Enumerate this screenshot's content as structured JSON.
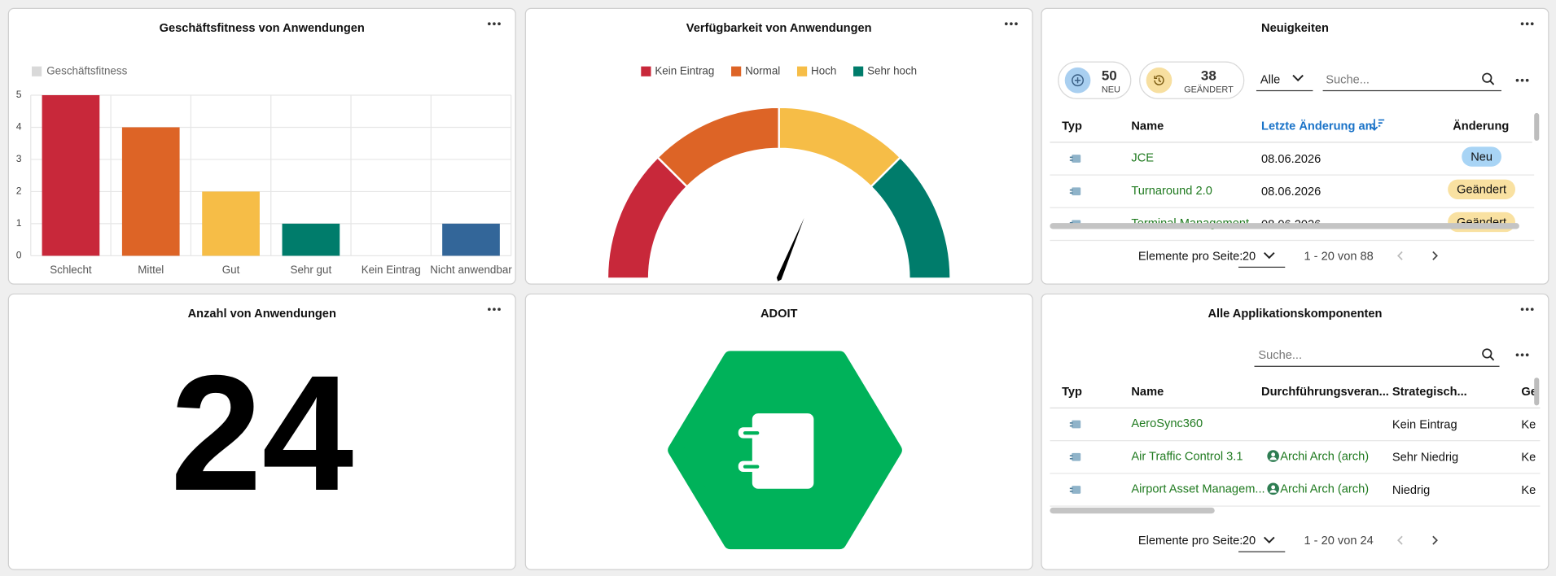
{
  "fitness": {
    "title": "Geschäftsfitness von Anwendungen",
    "chart_data": {
      "type": "bar",
      "legend": "Geschäftsfitness",
      "legend_color": "#d9d9d9",
      "categories": [
        "Schlecht",
        "Mittel",
        "Gut",
        "Sehr gut",
        "Kein Eintrag",
        "Nicht anwendbar"
      ],
      "values": [
        5,
        4,
        2,
        1,
        0,
        1
      ],
      "colors": [
        "#c8283a",
        "#dd6426",
        "#f6bd47",
        "#007c6b",
        "#d9d9d9",
        "#336699"
      ],
      "ylim": [
        0,
        5
      ],
      "yticks": [
        0,
        1,
        2,
        3,
        4,
        5
      ],
      "grid": true
    }
  },
  "availability": {
    "title": "Verfügbarkeit von Anwendungen",
    "chart_data": {
      "type": "gauge",
      "series": [
        {
          "name": "Kein Eintrag",
          "color": "#c8283a"
        },
        {
          "name": "Normal",
          "color": "#dd6426"
        },
        {
          "name": "Hoch",
          "color": "#f6bd47"
        },
        {
          "name": "Sehr hoch",
          "color": "#007c6b"
        }
      ],
      "ylim": [
        0,
        4
      ],
      "value": 2.5
    }
  },
  "news": {
    "title": "Neuigkeiten",
    "new_count": 50,
    "new_label": "NEU",
    "changed_count": 38,
    "changed_label": "GEÄNDERT",
    "filter": "Alle",
    "search_placeholder": "Suche...",
    "columns": [
      "Typ",
      "Name",
      "Letzte Änderung am",
      "Änderung"
    ],
    "rows": [
      {
        "name": "JCE",
        "date": "08.06.2026",
        "change": "Neu",
        "badge_color": "#a8d4f5"
      },
      {
        "name": "Turnaround 2.0",
        "date": "08.06.2026",
        "change": "Geändert",
        "badge_color": "#f9e1a1"
      },
      {
        "name": "Terminal Management",
        "date": "08.06.2026",
        "change": "Geändert",
        "badge_color": "#f9e1a1"
      }
    ],
    "per_page_label": "Elemente pro Seite:",
    "per_page": 20,
    "range": "1 - 20 von 88"
  },
  "count": {
    "title": "Anzahl von Anwendungen",
    "value": 24
  },
  "adoit": {
    "title": "ADOIT"
  },
  "components": {
    "title": "Alle Applikationskomponenten",
    "search_placeholder": "Suche...",
    "columns": [
      "Typ",
      "Name",
      "Durchführungsveran...",
      "Strategisch...",
      "Ge"
    ],
    "rows": [
      {
        "name": "AeroSync360",
        "owner": null,
        "strategic": "Kein Eintrag",
        "column_5": "Ke"
      },
      {
        "name": "Air Traffic Control 3.1",
        "owner": "Archi Arch (arch)",
        "strategic": "Sehr Niedrig",
        "column_5": "Ke"
      },
      {
        "name": "Airport Asset Managem...",
        "owner": "Archi Arch (arch)",
        "strategic": "Niedrig",
        "column_5": "Ke"
      }
    ],
    "per_page_label": "Elemente pro Seite:",
    "per_page": 20,
    "range": "1 - 20 von 24"
  }
}
